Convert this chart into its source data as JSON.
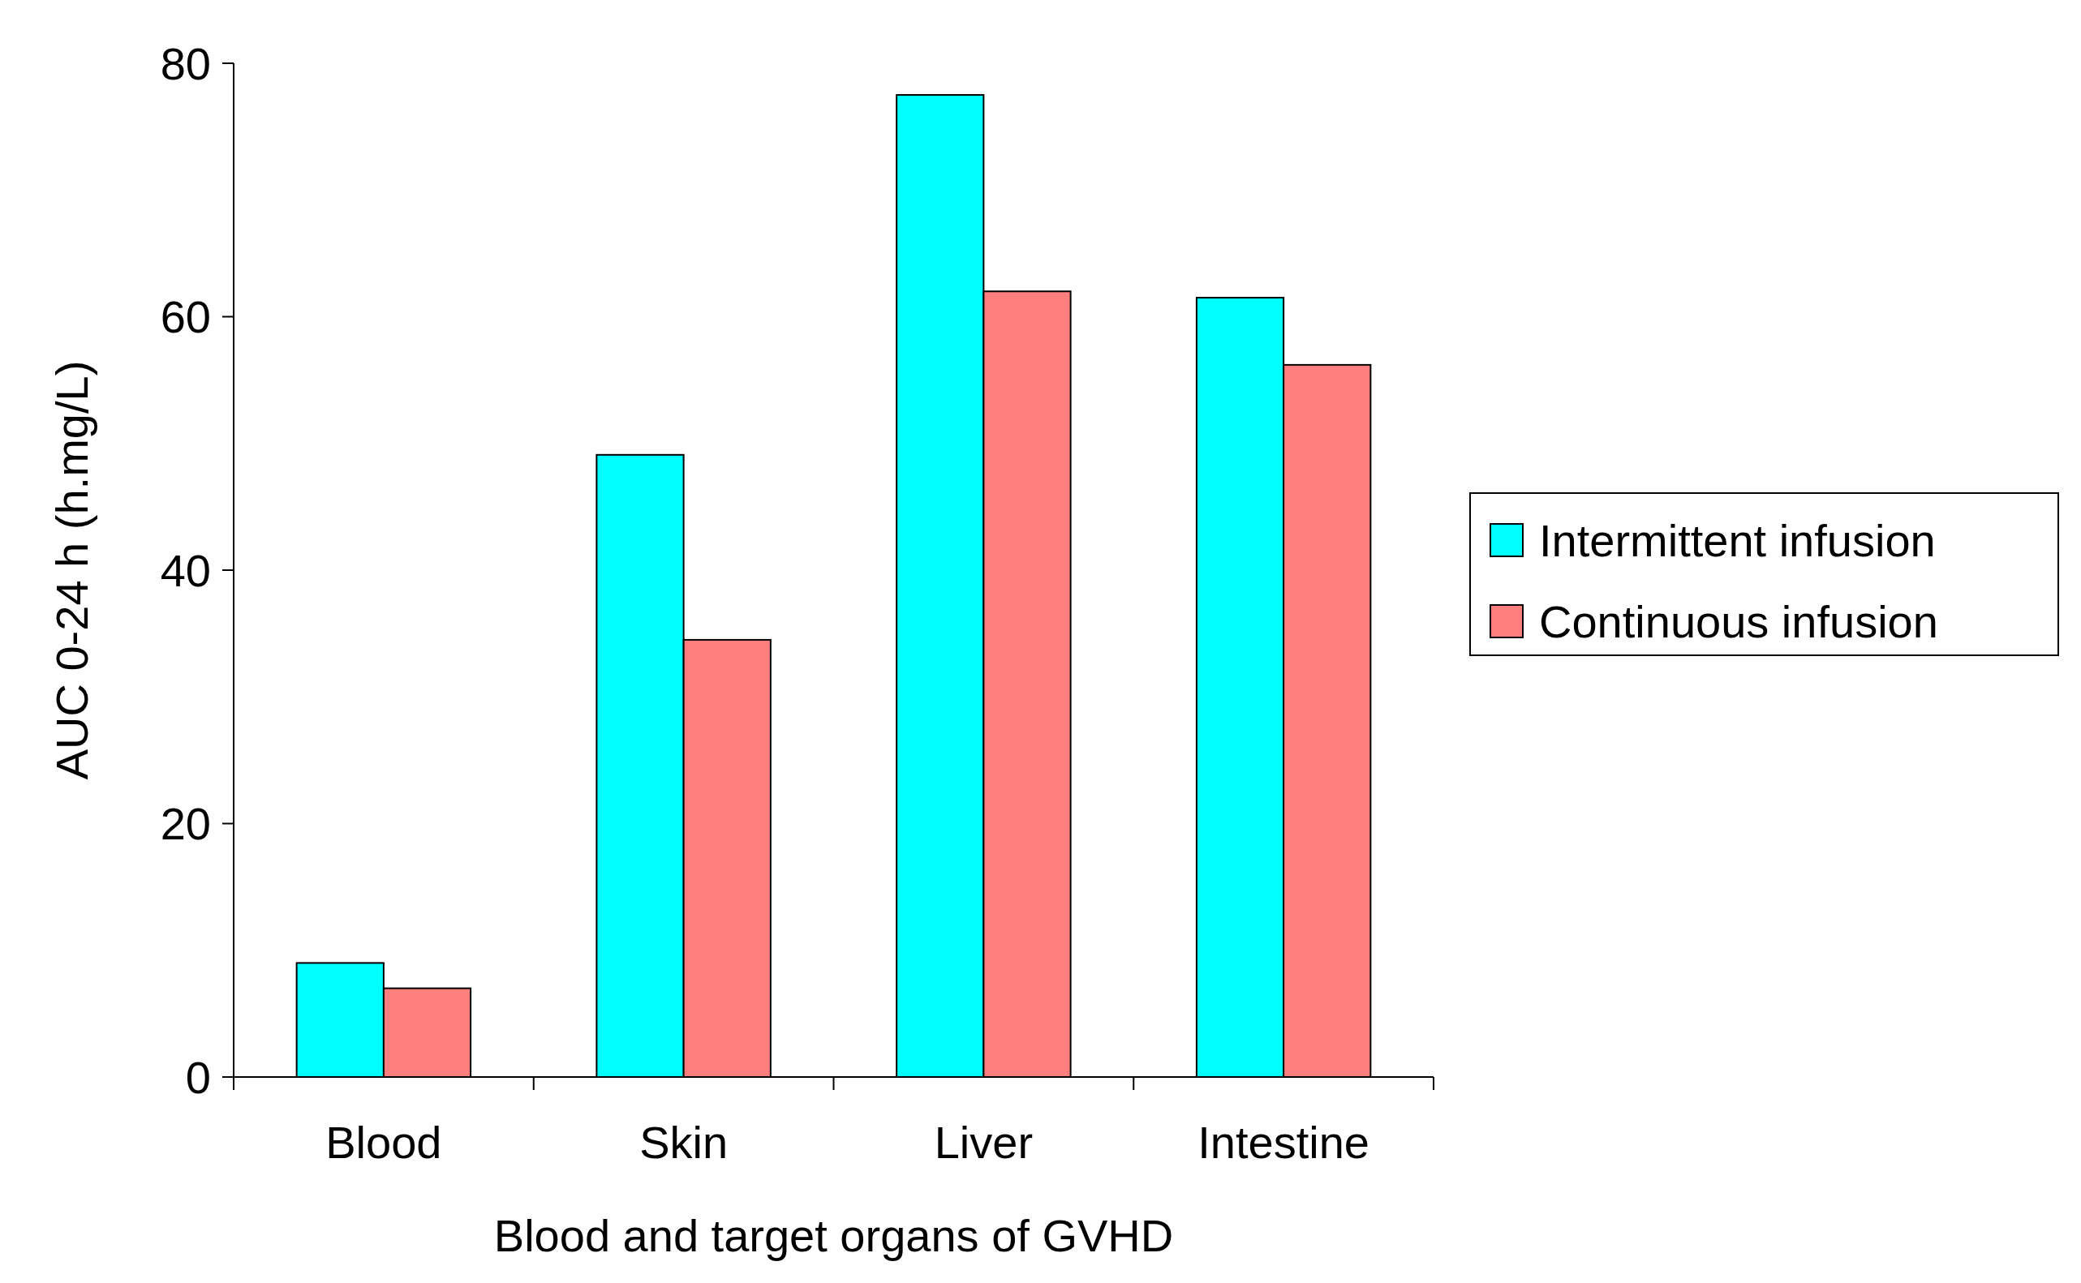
{
  "chart_data": {
    "type": "bar",
    "xlabel": "Blood and target organs of GVHD",
    "ylabel": "AUC 0-24 h (h.mg/L)",
    "categories": [
      "Blood",
      "Skin",
      "Liver",
      "Intestine"
    ],
    "series": [
      {
        "name": "Intermittent infusion",
        "color": "#00ffff",
        "values": [
          9,
          49.1,
          77.5,
          61.5
        ]
      },
      {
        "name": "Continuous infusion",
        "color": "#ff7f7f",
        "values": [
          7,
          34.5,
          62,
          56.2
        ]
      }
    ],
    "ylim": [
      0,
      80
    ],
    "yticks": [
      0,
      20,
      40,
      60,
      80
    ],
    "grid": false,
    "legend": "right"
  }
}
